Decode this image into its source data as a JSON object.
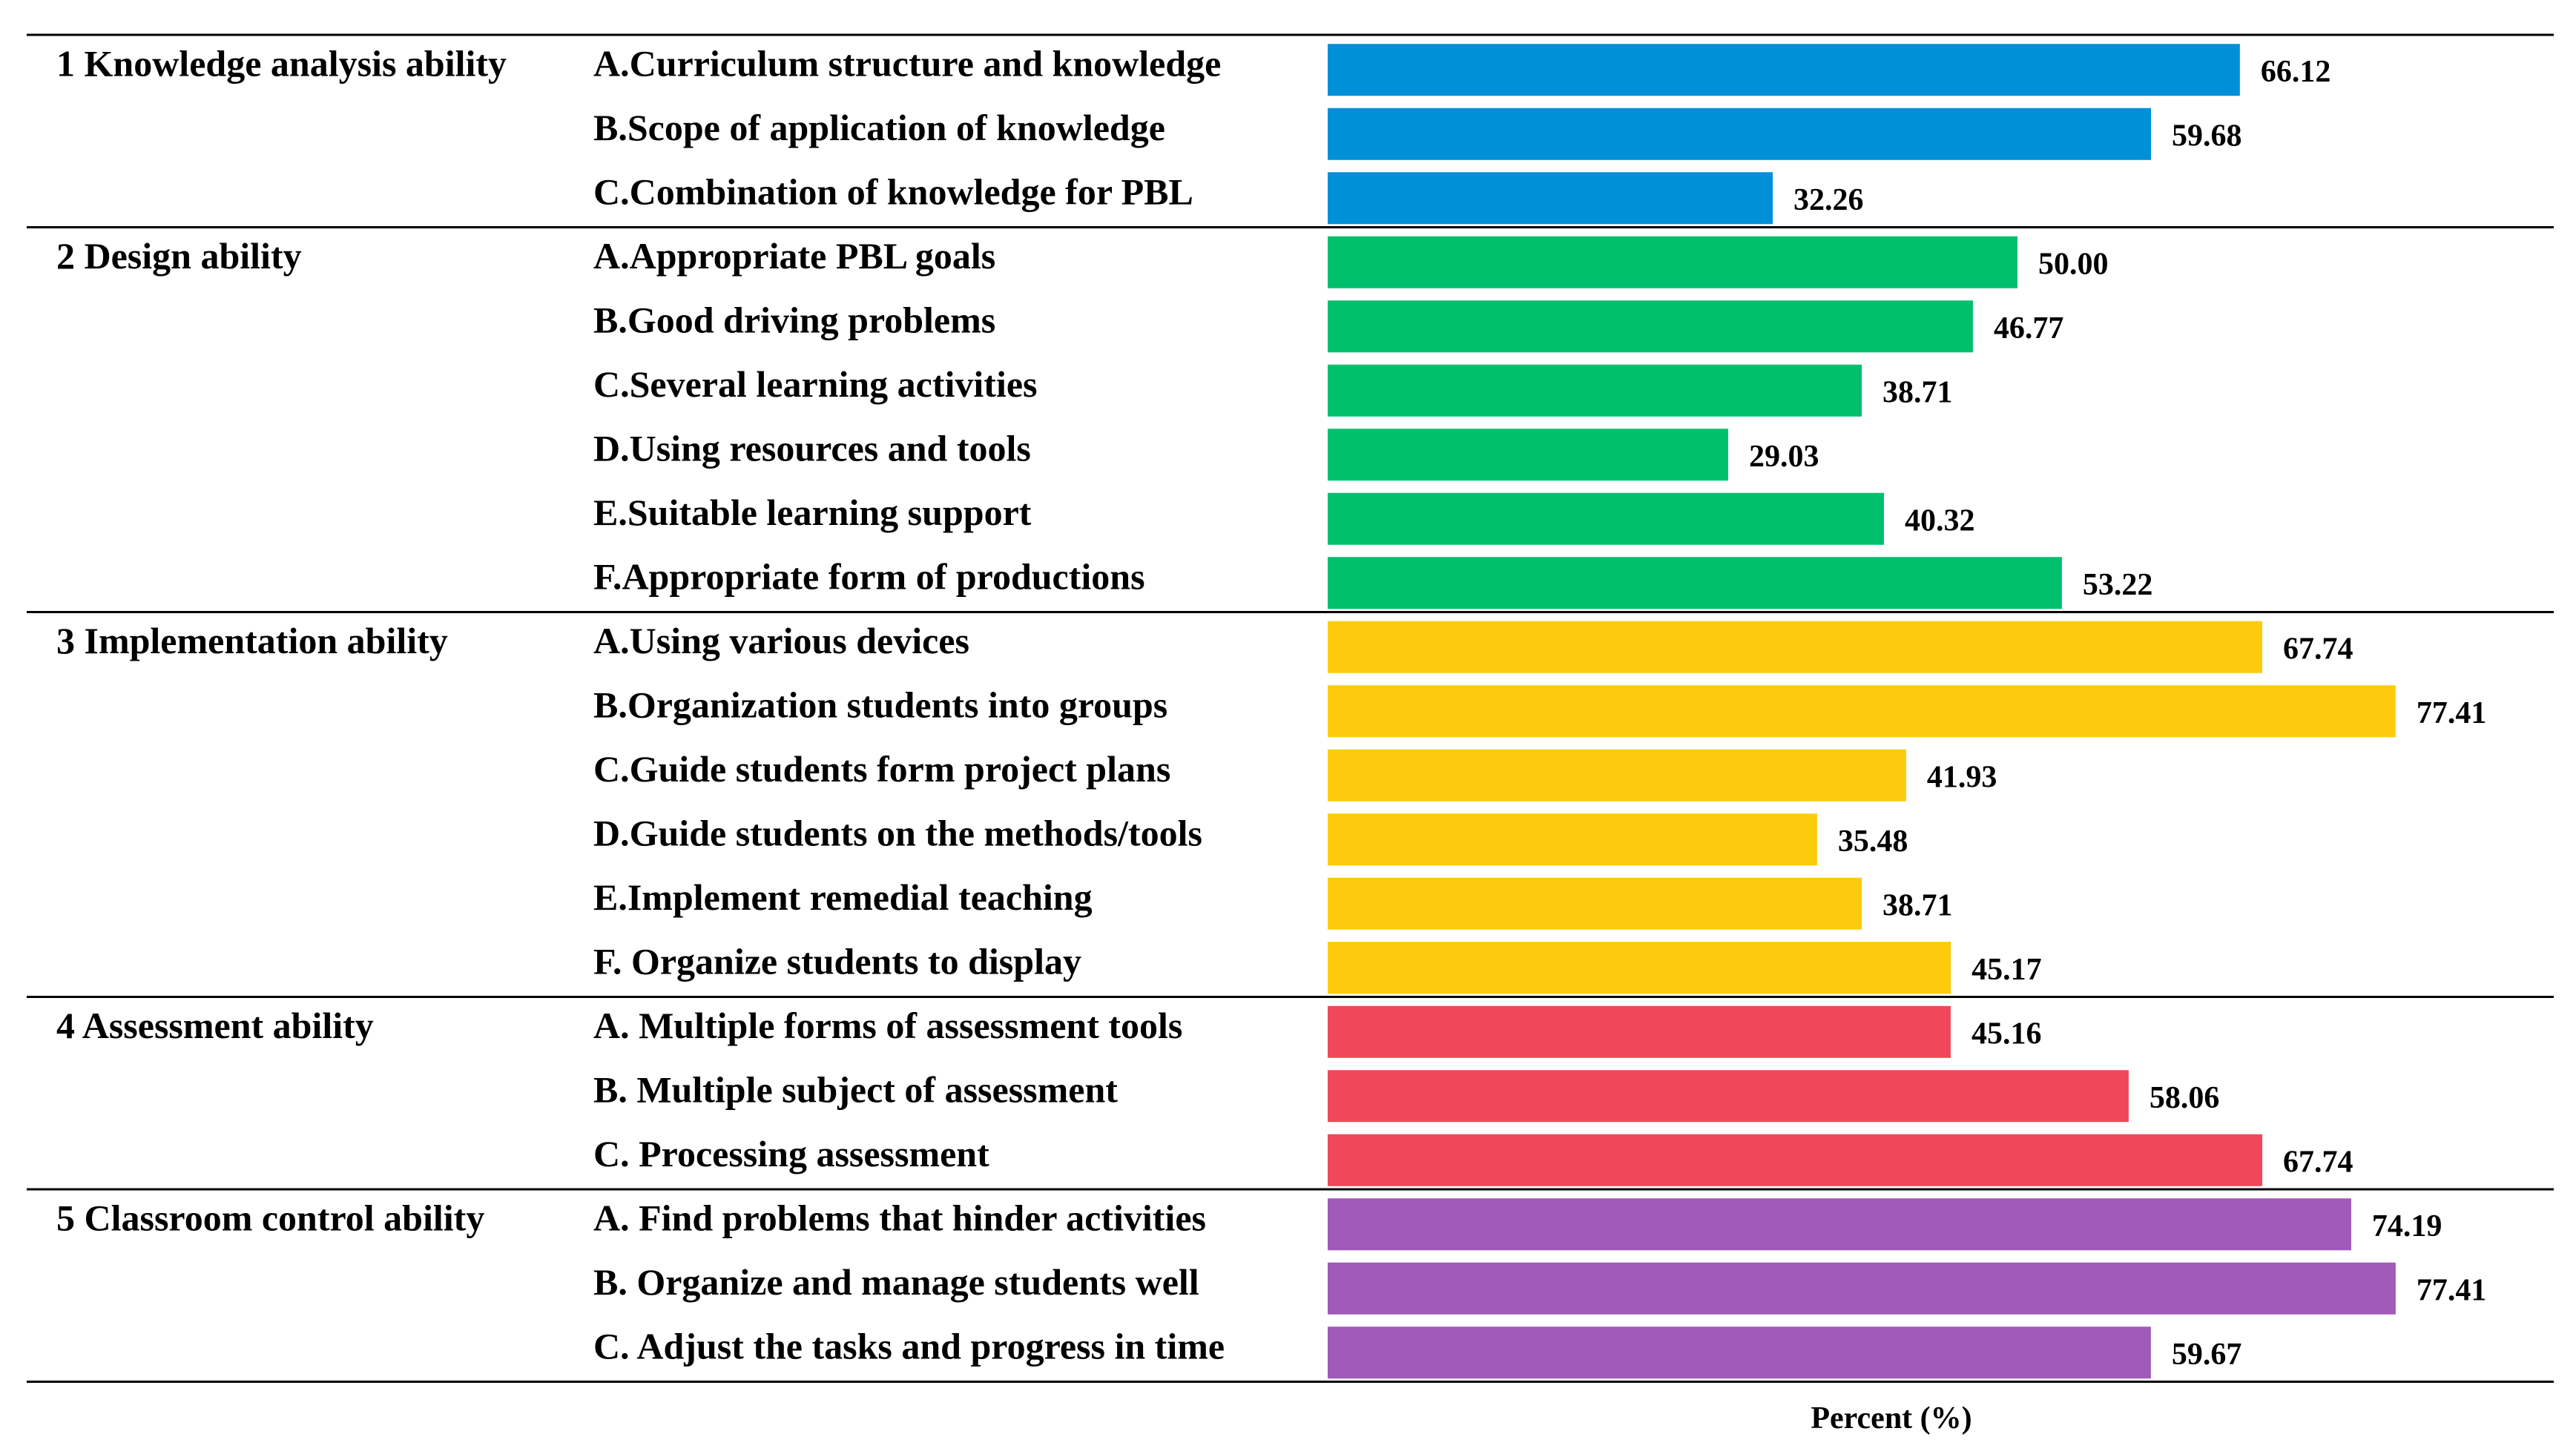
{
  "chart_data": {
    "type": "bar",
    "orientation": "horizontal",
    "xlabel": "Percent (%)",
    "xlim": [
      0,
      80
    ],
    "grid": false,
    "groups": [
      {
        "label": "1 Knowledge analysis ability",
        "color": "#0090D8",
        "items": [
          {
            "label": "A.Curriculum structure and knowledge",
            "value": 66.12,
            "value_label": "66.12"
          },
          {
            "label": "B.Scope of application of knowledge",
            "value": 59.68,
            "value_label": "59.68"
          },
          {
            "label": "C.Combination of knowledge for PBL",
            "value": 32.26,
            "value_label": "32.26"
          }
        ]
      },
      {
        "label": "2 Design ability",
        "color": "#00C06E",
        "items": [
          {
            "label": "A.Appropriate PBL goals",
            "value": 50.0,
            "value_label": "50.00"
          },
          {
            "label": "B.Good driving problems",
            "value": 46.77,
            "value_label": "46.77"
          },
          {
            "label": "C.Several learning activities",
            "value": 38.71,
            "value_label": "38.71"
          },
          {
            "label": "D.Using resources and tools",
            "value": 29.03,
            "value_label": "29.03"
          },
          {
            "label": "E.Suitable learning support",
            "value": 40.32,
            "value_label": "40.32"
          },
          {
            "label": "F.Appropriate form of productions",
            "value": 53.22,
            "value_label": "53.22"
          }
        ]
      },
      {
        "label": "3 Implementation ability",
        "color": "#FDCB0E",
        "items": [
          {
            "label": "A.Using various devices",
            "value": 67.74,
            "value_label": "67.74"
          },
          {
            "label": "B.Organization students into groups",
            "value": 77.41,
            "value_label": "77.41"
          },
          {
            "label": "C.Guide students form project plans",
            "value": 41.93,
            "value_label": "41.93"
          },
          {
            "label": "D.Guide students on the methods/tools",
            "value": 35.48,
            "value_label": "35.48"
          },
          {
            "label": "E.Implement remedial teaching",
            "value": 38.71,
            "value_label": "38.71"
          },
          {
            "label": "F. Organize students to display",
            "value": 45.17,
            "value_label": "45.17"
          }
        ]
      },
      {
        "label": "4 Assessment ability",
        "color": "#F0485A",
        "items": [
          {
            "label": "A. Multiple forms of assessment tools",
            "value": 45.16,
            "value_label": "45.16"
          },
          {
            "label": "B. Multiple subject of assessment",
            "value": 58.06,
            "value_label": "58.06"
          },
          {
            "label": "C. Processing assessment",
            "value": 67.74,
            "value_label": "67.74"
          }
        ]
      },
      {
        "label": "5 Classroom control ability",
        "color": "#A05AB8",
        "items": [
          {
            "label": "A. Find problems that hinder activities",
            "value": 74.19,
            "value_label": "74.19"
          },
          {
            "label": "B. Organize and manage students well",
            "value": 77.41,
            "value_label": "77.41"
          },
          {
            "label": "C. Adjust the tasks and progress in time",
            "value": 59.67,
            "value_label": "59.67"
          }
        ]
      }
    ]
  }
}
